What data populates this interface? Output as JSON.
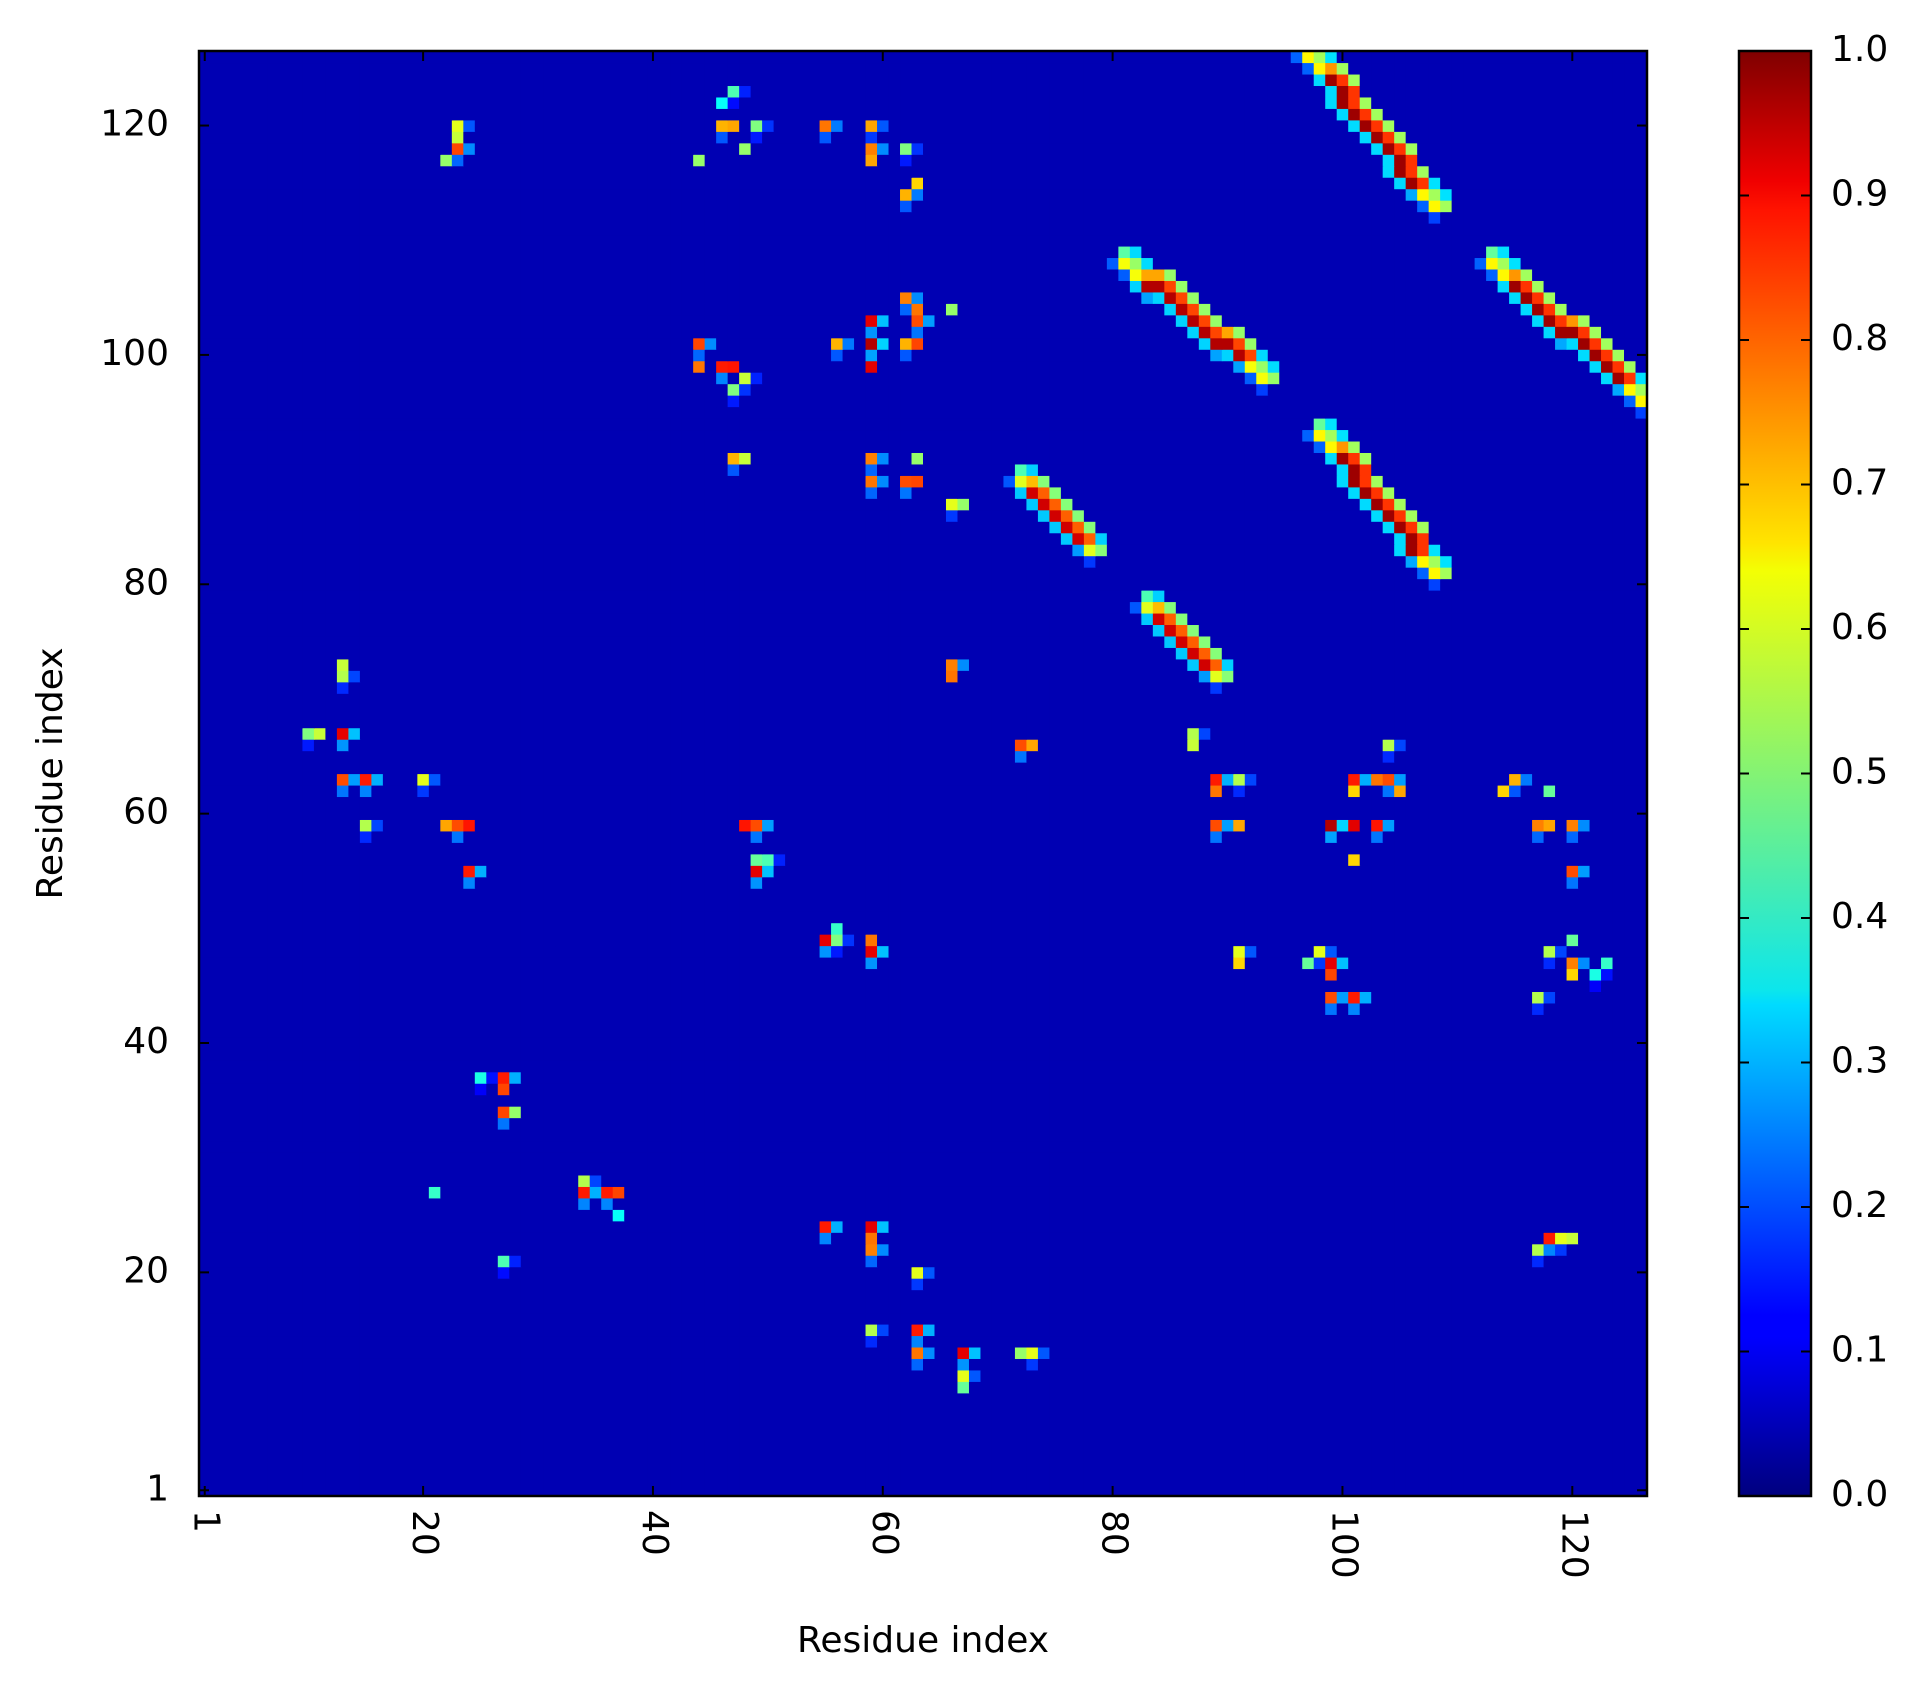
{
  "chart_data": {
    "type": "heatmap",
    "title": "",
    "xlabel": "Residue index",
    "ylabel": "Residue index",
    "n_residues": 126,
    "xlim": [
      1,
      126
    ],
    "ylim": [
      1,
      126
    ],
    "x_ticks": [
      "1",
      "20",
      "40",
      "60",
      "80",
      "100",
      "120"
    ],
    "x_tick_values": [
      1,
      20,
      40,
      60,
      80,
      100,
      120
    ],
    "y_ticks": [
      "1",
      "20",
      "40",
      "60",
      "80",
      "100",
      "120"
    ],
    "y_tick_values": [
      1,
      20,
      40,
      60,
      80,
      100,
      120
    ],
    "colorbar": {
      "colormap": "jet",
      "min": 0.0,
      "max": 1.0,
      "ticks": [
        "0.0",
        "0.1",
        "0.2",
        "0.3",
        "0.4",
        "0.5",
        "0.6",
        "0.7",
        "0.8",
        "0.9",
        "1.0"
      ],
      "tick_values": [
        0.0,
        0.1,
        0.2,
        0.3,
        0.4,
        0.5,
        0.6,
        0.7,
        0.8,
        0.9,
        1.0
      ]
    },
    "background_value": 0.05,
    "diagonal_bands": [
      {
        "x_start": 97,
        "y_start": 126,
        "x_end": 108,
        "y_end": 113,
        "peak": 0.97
      },
      {
        "x_start": 81,
        "y_start": 108,
        "x_end": 93,
        "y_end": 98,
        "peak": 0.95
      },
      {
        "x_start": 113,
        "y_start": 108,
        "x_end": 126,
        "y_end": 96,
        "peak": 0.97
      },
      {
        "x_start": 98,
        "y_start": 93,
        "x_end": 108,
        "y_end": 81,
        "peak": 0.97
      },
      {
        "x_start": 72,
        "y_start": 89,
        "x_end": 78,
        "y_end": 83,
        "peak": 0.92
      },
      {
        "x_start": 83,
        "y_start": 78,
        "x_end": 89,
        "y_end": 72,
        "peak": 0.92
      }
    ],
    "hotspots": [
      {
        "x": 23,
        "y": 118,
        "v": 0.75
      },
      {
        "x": 23,
        "y": 120,
        "v": 0.6
      },
      {
        "x": 47,
        "y": 123,
        "v": 0.45
      },
      {
        "x": 59,
        "y": 120,
        "v": 0.6
      },
      {
        "x": 55,
        "y": 120,
        "v": 0.7
      },
      {
        "x": 62,
        "y": 118,
        "v": 0.5
      },
      {
        "x": 62,
        "y": 114,
        "v": 0.7
      },
      {
        "x": 59,
        "y": 118,
        "v": 0.75
      },
      {
        "x": 49,
        "y": 120,
        "v": 0.5
      },
      {
        "x": 46,
        "y": 120,
        "v": 0.7
      },
      {
        "x": 59,
        "y": 103,
        "v": 0.9
      },
      {
        "x": 62,
        "y": 105,
        "v": 0.75
      },
      {
        "x": 62,
        "y": 101,
        "v": 0.7
      },
      {
        "x": 59,
        "y": 101,
        "v": 0.95
      },
      {
        "x": 56,
        "y": 101,
        "v": 0.7
      },
      {
        "x": 44,
        "y": 101,
        "v": 0.75
      },
      {
        "x": 46,
        "y": 99,
        "v": 0.85
      },
      {
        "x": 47,
        "y": 97,
        "v": 0.5
      },
      {
        "x": 48,
        "y": 98,
        "v": 0.45
      },
      {
        "x": 63,
        "y": 103,
        "v": 0.8
      },
      {
        "x": 59,
        "y": 91,
        "v": 0.75
      },
      {
        "x": 59,
        "y": 89,
        "v": 0.75
      },
      {
        "x": 62,
        "y": 89,
        "v": 0.8
      },
      {
        "x": 47,
        "y": 91,
        "v": 0.7
      },
      {
        "x": 66,
        "y": 87,
        "v": 0.6
      },
      {
        "x": 66,
        "y": 73,
        "v": 0.75
      },
      {
        "x": 72,
        "y": 66,
        "v": 0.8
      },
      {
        "x": 13,
        "y": 67,
        "v": 0.9
      },
      {
        "x": 13,
        "y": 63,
        "v": 0.8
      },
      {
        "x": 15,
        "y": 63,
        "v": 0.85
      },
      {
        "x": 13,
        "y": 72,
        "v": 0.55
      },
      {
        "x": 10,
        "y": 67,
        "v": 0.5
      },
      {
        "x": 15,
        "y": 59,
        "v": 0.55
      },
      {
        "x": 23,
        "y": 59,
        "v": 0.8
      },
      {
        "x": 24,
        "y": 55,
        "v": 0.85
      },
      {
        "x": 20,
        "y": 63,
        "v": 0.6
      },
      {
        "x": 27,
        "y": 37,
        "v": 0.85
      },
      {
        "x": 27,
        "y": 34,
        "v": 0.8
      },
      {
        "x": 25,
        "y": 37,
        "v": 0.4
      },
      {
        "x": 49,
        "y": 59,
        "v": 0.8
      },
      {
        "x": 49,
        "y": 55,
        "v": 0.9
      },
      {
        "x": 50,
        "y": 56,
        "v": 0.45
      },
      {
        "x": 55,
        "y": 49,
        "v": 0.9
      },
      {
        "x": 59,
        "y": 48,
        "v": 0.9
      },
      {
        "x": 56,
        "y": 49,
        "v": 0.5
      },
      {
        "x": 34,
        "y": 27,
        "v": 0.85
      },
      {
        "x": 36,
        "y": 27,
        "v": 0.85
      },
      {
        "x": 34,
        "y": 28,
        "v": 0.55
      },
      {
        "x": 55,
        "y": 24,
        "v": 0.85
      },
      {
        "x": 59,
        "y": 24,
        "v": 0.9
      },
      {
        "x": 59,
        "y": 22,
        "v": 0.75
      },
      {
        "x": 63,
        "y": 20,
        "v": 0.6
      },
      {
        "x": 63,
        "y": 15,
        "v": 0.85
      },
      {
        "x": 63,
        "y": 13,
        "v": 0.75
      },
      {
        "x": 67,
        "y": 13,
        "v": 0.9
      },
      {
        "x": 67,
        "y": 11,
        "v": 0.6
      },
      {
        "x": 73,
        "y": 13,
        "v": 0.6
      },
      {
        "x": 59,
        "y": 15,
        "v": 0.55
      },
      {
        "x": 27,
        "y": 21,
        "v": 0.45
      },
      {
        "x": 89,
        "y": 63,
        "v": 0.85
      },
      {
        "x": 89,
        "y": 59,
        "v": 0.8
      },
      {
        "x": 91,
        "y": 63,
        "v": 0.55
      },
      {
        "x": 87,
        "y": 67,
        "v": 0.55
      },
      {
        "x": 99,
        "y": 59,
        "v": 0.95
      },
      {
        "x": 101,
        "y": 63,
        "v": 0.85
      },
      {
        "x": 104,
        "y": 63,
        "v": 0.8
      },
      {
        "x": 103,
        "y": 59,
        "v": 0.8
      },
      {
        "x": 99,
        "y": 47,
        "v": 0.9
      },
      {
        "x": 98,
        "y": 48,
        "v": 0.6
      },
      {
        "x": 91,
        "y": 48,
        "v": 0.6
      },
      {
        "x": 99,
        "y": 44,
        "v": 0.8
      },
      {
        "x": 101,
        "y": 44,
        "v": 0.85
      },
      {
        "x": 104,
        "y": 66,
        "v": 0.55
      },
      {
        "x": 118,
        "y": 23,
        "v": 0.85
      },
      {
        "x": 117,
        "y": 22,
        "v": 0.55
      },
      {
        "x": 119,
        "y": 23,
        "v": 0.6
      },
      {
        "x": 115,
        "y": 63,
        "v": 0.7
      },
      {
        "x": 120,
        "y": 59,
        "v": 0.75
      },
      {
        "x": 120,
        "y": 55,
        "v": 0.8
      },
      {
        "x": 120,
        "y": 47,
        "v": 0.75
      },
      {
        "x": 117,
        "y": 59,
        "v": 0.75
      },
      {
        "x": 118,
        "y": 48,
        "v": 0.55
      },
      {
        "x": 117,
        "y": 44,
        "v": 0.55
      },
      {
        "x": 122,
        "y": 46,
        "v": 0.4
      }
    ]
  }
}
